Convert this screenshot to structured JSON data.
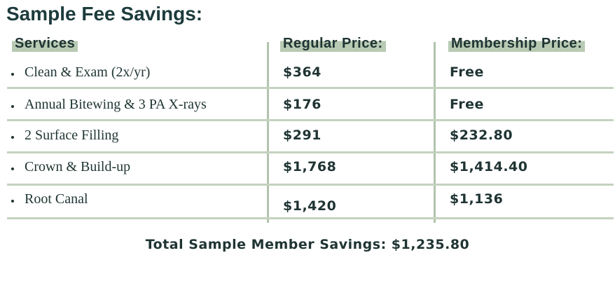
{
  "header": {
    "title": "Sample Fee Savings:"
  },
  "table": {
    "columns": [
      "Services",
      "Regular Price:",
      "Membership Price:"
    ],
    "rows": [
      [
        "Clean & Exam (2x/yr)",
        "$364",
        "Free"
      ],
      [
        "Annual Bitewing & 3 PA X-rays",
        "$176",
        "Free"
      ],
      [
        "2 Surface Filling",
        "$291",
        "$232.80"
      ],
      [
        "Crown & Build-up",
        "$1,768",
        "$1,414.40"
      ],
      [
        "Root Canal",
        "$1,420",
        "$1,136"
      ]
    ]
  },
  "footer": {
    "total": "Total Sample Member Savings: $1,235.80"
  }
}
